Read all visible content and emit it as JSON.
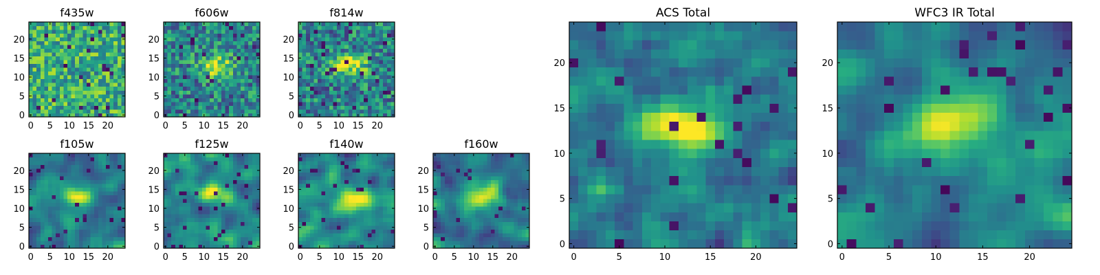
{
  "chart_data": [
    {
      "type": "heatmap",
      "title": "f435w",
      "xlabel": "",
      "ylabel": "",
      "xlim": [
        -0.5,
        24.5
      ],
      "ylim": [
        -0.5,
        24.5
      ],
      "grid": false,
      "xticks": [
        0,
        5,
        10,
        15,
        20
      ],
      "yticks": [
        0,
        5,
        10,
        15,
        20
      ],
      "xtick_labels": [
        "0",
        "5",
        "10",
        "15",
        "20"
      ],
      "ytick_labels": [
        "0",
        "5",
        "10",
        "15",
        "20"
      ],
      "colormap": "viridis",
      "source_center": null,
      "pattern": "noise"
    },
    {
      "type": "heatmap",
      "title": "f606w",
      "xlabel": "",
      "ylabel": "",
      "xlim": [
        -0.5,
        24.5
      ],
      "ylim": [
        -0.5,
        24.5
      ],
      "grid": false,
      "xticks": [
        0,
        5,
        10,
        15,
        20
      ],
      "yticks": [
        0,
        5,
        10,
        15,
        20
      ],
      "xtick_labels": [
        "0",
        "5",
        "10",
        "15",
        "20"
      ],
      "ytick_labels": [
        "0",
        "5",
        "10",
        "15",
        "20"
      ],
      "colormap": "viridis",
      "source_center": [
        13,
        13
      ],
      "pattern": "faint-source"
    },
    {
      "type": "heatmap",
      "title": "f814w",
      "xlabel": "",
      "ylabel": "",
      "xlim": [
        -0.5,
        24.5
      ],
      "ylim": [
        -0.5,
        24.5
      ],
      "grid": false,
      "xticks": [
        0,
        5,
        10,
        15,
        20
      ],
      "yticks": [
        0,
        5,
        10,
        15,
        20
      ],
      "xtick_labels": [
        "0",
        "5",
        "10",
        "15",
        "20"
      ],
      "ytick_labels": [
        "0",
        "5",
        "10",
        "15",
        "20"
      ],
      "colormap": "viridis",
      "source_center": [
        13,
        13
      ],
      "pattern": "faint-source"
    },
    {
      "type": "heatmap",
      "title": "f105w",
      "xlabel": "",
      "ylabel": "",
      "xlim": [
        -0.5,
        24.5
      ],
      "ylim": [
        -0.5,
        24.5
      ],
      "grid": false,
      "xticks": [
        0,
        5,
        10,
        15,
        20
      ],
      "yticks": [
        0,
        5,
        10,
        15,
        20
      ],
      "xtick_labels": [
        "0",
        "5",
        "10",
        "15",
        "20"
      ],
      "ytick_labels": [
        "0",
        "5",
        "10",
        "15",
        "20"
      ],
      "colormap": "viridis",
      "source_center": [
        13,
        13
      ],
      "pattern": "smooth-source"
    },
    {
      "type": "heatmap",
      "title": "f125w",
      "xlabel": "",
      "ylabel": "",
      "xlim": [
        -0.5,
        24.5
      ],
      "ylim": [
        -0.5,
        24.5
      ],
      "grid": false,
      "xticks": [
        0,
        5,
        10,
        15,
        20
      ],
      "yticks": [
        0,
        5,
        10,
        15,
        20
      ],
      "xtick_labels": [
        "0",
        "5",
        "10",
        "15",
        "20"
      ],
      "ytick_labels": [
        "0",
        "5",
        "10",
        "15",
        "20"
      ],
      "colormap": "viridis",
      "source_center": [
        12,
        14
      ],
      "pattern": "smooth-source"
    },
    {
      "type": "heatmap",
      "title": "f140w",
      "xlabel": "",
      "ylabel": "",
      "xlim": [
        -0.5,
        24.5
      ],
      "ylim": [
        -0.5,
        24.5
      ],
      "grid": false,
      "xticks": [
        0,
        5,
        10,
        15,
        20
      ],
      "yticks": [
        0,
        5,
        10,
        15,
        20
      ],
      "xtick_labels": [
        "0",
        "5",
        "10",
        "15",
        "20"
      ],
      "ytick_labels": [
        "0",
        "5",
        "10",
        "15",
        "20"
      ],
      "colormap": "viridis",
      "source_center": [
        13,
        13
      ],
      "pattern": "smooth-source"
    },
    {
      "type": "heatmap",
      "title": "f160w",
      "xlabel": "",
      "ylabel": "",
      "xlim": [
        -0.5,
        24.5
      ],
      "ylim": [
        -0.5,
        24.5
      ],
      "grid": false,
      "xticks": [
        0,
        5,
        10,
        15,
        20
      ],
      "yticks": [
        0,
        5,
        10,
        15,
        20
      ],
      "xtick_labels": [
        "0",
        "5",
        "10",
        "15",
        "20"
      ],
      "ytick_labels": [
        "0",
        "5",
        "10",
        "15",
        "20"
      ],
      "colormap": "viridis",
      "source_center": [
        12,
        13
      ],
      "pattern": "smooth-source"
    },
    {
      "type": "heatmap",
      "title": "ACS Total",
      "xlabel": "",
      "ylabel": "",
      "xlim": [
        -0.5,
        24.5
      ],
      "ylim": [
        -0.5,
        24.5
      ],
      "grid": false,
      "xticks": [
        0,
        5,
        10,
        15,
        20
      ],
      "yticks": [
        0,
        5,
        10,
        15,
        20
      ],
      "xtick_labels": [
        "0",
        "5",
        "10",
        "15",
        "20"
      ],
      "ytick_labels": [
        "0",
        "5",
        "10",
        "15",
        "20"
      ],
      "colormap": "viridis",
      "source_center": [
        12,
        13
      ],
      "pattern": "source"
    },
    {
      "type": "heatmap",
      "title": "WFC3 IR Total",
      "xlabel": "",
      "ylabel": "",
      "xlim": [
        -0.5,
        24.5
      ],
      "ylim": [
        -0.5,
        24.5
      ],
      "grid": false,
      "xticks": [
        0,
        5,
        10,
        15,
        20
      ],
      "yticks": [
        0,
        5,
        10,
        15,
        20
      ],
      "xtick_labels": [
        "0",
        "5",
        "10",
        "15",
        "20"
      ],
      "ytick_labels": [
        "0",
        "5",
        "10",
        "15",
        "20"
      ],
      "colormap": "viridis",
      "source_center": [
        12,
        13
      ],
      "pattern": "smooth-source"
    }
  ],
  "colors": {
    "viridis_low": "#440154",
    "viridis_mid": "#21918c",
    "viridis_high": "#fde725",
    "axis": "#000000",
    "background": "#ffffff"
  }
}
